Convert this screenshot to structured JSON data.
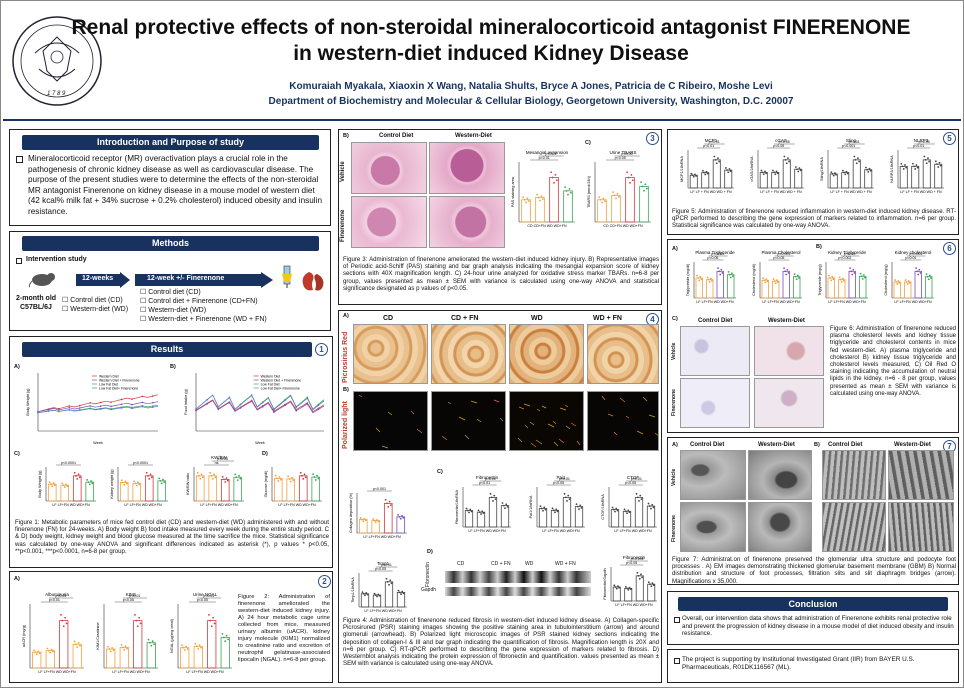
{
  "title_line1": "Renal protective effects of non-steroidal mineralocorticoid antagonist FINERENONE",
  "title_line2": "in western-diet induced Kidney Disease",
  "authors": "Komuraiah Myakala, Xiaoxin X Wang, Natalia Shults, Bryce A Jones, Patricia de C Ribeiro, Moshe Levi",
  "affiliation": "Department of Biochemistry and Molecular & Cellular Biology, Georgetown University, Washington, D.C. 20007",
  "seal_year": "1 7 8 9",
  "intro": {
    "header": "Introduction and Purpose of study",
    "text": "Mineralocorticoid receptor (MR) overactivation plays a crucial role in the pathogenesis of chronic kidney disease as well as cardiovascular disease. The purpose of the present studies were to determine the effects of the non-steroidal MR antagonist Finerenone on kidney disease in a mouse model of western diet (42 kcal% milk fat + 34% sucrose + 0.2% cholesterol) induced obesity and insulin resistance."
  },
  "methods": {
    "header": "Methods",
    "intervention": "Intervention study",
    "age": "2-month old",
    "strain": "C57BL/6J",
    "weeks12": "12-weeks",
    "weeks12fn": "12-week +/- Finerenone",
    "left_groups": [
      "Control diet (CD)",
      "Western-diet (WD)"
    ],
    "right_groups": [
      "Control diet (CD)",
      "Control diet + Finerenone (CD+FN)",
      "Western-diet (WD)",
      "Western-diet + Finerenone (WD + FN)"
    ]
  },
  "results": {
    "header": "Results",
    "num": "1",
    "panel_a": "A)",
    "panel_b": "B)",
    "panel_c": "C)",
    "panel_d": "D)",
    "legend": [
      "Western Diet",
      "Western Diet + Finerenone",
      "Low Fat Diet",
      "Low Fat Diet+ Finerenone"
    ],
    "ylabel_a": "Body Weight (g)",
    "ylabel_b": "Food Intake (g)",
    "xlabel": "Week",
    "c_labels": [
      "Body Weight (g)",
      "Kidney weight (g)",
      "KW/BW ratio",
      "Glucose (mg/dl)"
    ],
    "kwbw": "KW/BW",
    "sig": [
      "p<0.0001",
      "p<0.0001",
      "ns",
      "p<0.05"
    ],
    "xcat": "LF LF+FN WD WD+FN",
    "caption": "Figure 1: Metabolic parameters of mice fed control diet (CD) and western-diet (WD) administered with and without finerenone (FN) for 24-weeks. A) Body weight B) food intake measured every week during the entire study period. C & D) body weight, kidney weight and blood glucose measured at the time sacrifice the mice. Statistical significance was calculated by one-way ANOVA and significant differences indicated as asterisk (*), p values * p<0.05, **p<0.001, ***p<0.0001, n=6-8 per group."
  },
  "fig2": {
    "num": "2",
    "panel": "A)",
    "titles": [
      "Albuminuria",
      "KIM1",
      "Urine NGAL"
    ],
    "ylabels": [
      "uACR (mg/g)",
      "KIM1/Creatinine",
      "NGAL (µg/mg creat)"
    ],
    "sig": [
      "p<0.01",
      "p<0.01",
      "p<0.05",
      "p<0.01",
      "p<0.05",
      "p<0.01"
    ],
    "caption": "Figure 2: Administration of finerenone ameliorated the western-diet induced kidney injury. A) 24 hour metabolic cage urine collected from mice, measured urinary albumin (uACR), kidney injury molecule (KIM1) normalized to creatinine ratio and excretion of neutrophil gelatinase-associated lipocalin (NGAL). n=6-8 per group."
  },
  "fig3": {
    "num": "3",
    "panel_b": "B)",
    "panel_c": "C)",
    "cols": [
      "Control Diet",
      "Western-Diet"
    ],
    "rows": [
      "Vehicle",
      "Finerenone"
    ],
    "chart1": "Mesangial expansion",
    "chart2": "Urine TBARS",
    "ylabel1": "PAS staining area",
    "ylabel2": "TBARS (nmol/24h)",
    "sig": [
      "p<0.01",
      "p<0.01",
      "p<0.05",
      "p<0.05"
    ],
    "xcat": "CD CD+FN WD WD+FN",
    "caption": "Figure 3: Administration of finerenone ameliorated the western-diet induced kidney injury. B) Representative images of Periodic acid-Schiff (PAS) staining and bar graph analysis indicating the mesangial expansion score of kidney sections with 40X magnification length. C) 24-hour urine analyzed for oxidative stress marker TBARs. n=6-8 per group, values presented as mean ± SEM with variance is calculated using one-way ANOVA and statistical significance designated as p values of p<0.05."
  },
  "fig4": {
    "num": "4",
    "panel_a": "A)",
    "panel_b": "B)",
    "panel_c": "C)",
    "panel_d": "D)",
    "cols": [
      "CD",
      "CD + FN",
      "WD",
      "WD + FN"
    ],
    "row1": "Picrosirius Red",
    "row2": "Polarized light",
    "chart_titles": [
      "Fibronectin",
      "Pai1",
      "CTGF",
      "Timp1",
      "Fibronectin"
    ],
    "ylabels": [
      "Collagen deposition (%)",
      "Fibronectin/18sRNA",
      "Pai1/18sRNA",
      "CTGF/18sRNA",
      "Timp1/18sRNA",
      "Fibronectin/Gapdh"
    ],
    "sig": [
      "p<0.001",
      "p<0.01",
      "p<0.01",
      "p<0.05",
      "p<0.01",
      "p<0.05",
      "p<0.01",
      "p<0.05",
      "p<0.01",
      "p<0.05",
      "p<0.001"
    ],
    "blot_labels": [
      "Fibronectin",
      "Gapdh"
    ],
    "blot_cols": [
      "CD",
      "CD + FN",
      "WD",
      "WD + FN"
    ],
    "xcat": "LF LF+FN WD WD+FN",
    "caption": "Figure 4: Administration of finerenone reduced fibrosis in western-diet induced kidney disease. A) Collagen-specific Picrosirured (PSR) staining images showing the positive staining area in tubulointerstitium (arrow) and around glomeruli (arrowhead). B) Polarized light microscopic images of PSR stained kidney sections indicating the deposition of collagen-I & III and bar graph indicating the quantification of fibrosis. Magnification length is 20X and n=6 per group. C) RT-qPCR performed to describing the gene expression of markers related to fibrosis. D) Westernblot analysis indicating the protein expression of fibronectin and quantification. values presented as mean ± SEM with variance is calculated using one-way ANOVA."
  },
  "fig5": {
    "num": "5",
    "titles": [
      "MCP1",
      "cGAS",
      "Sting",
      "NLRP3"
    ],
    "ylabels": [
      "MCP1/18sRNA",
      "cGAS/18sRNA",
      "Sting/18sRNA",
      "NLRP3/18sRNA"
    ],
    "sig": [
      "p<0.01",
      "p<0.01",
      "p<0.05",
      "p<0.05",
      "p<0.001",
      "p<0.01",
      "p<0.01",
      "p<0.05"
    ],
    "xcat": "LF LF + FN WD WD + FN",
    "caption": "Figure 5: Administration of finerenone reduced inflammation in western-diet induced kidney disease. RT-qPCR performed to describing the gene expression of markers related to inflammation. n=6 per group. Statistical significance was calculated by one-way ANOVA."
  },
  "fig6": {
    "num": "6",
    "panel_a": "A)",
    "panel_b": "B)",
    "panel_c": "C)",
    "titles": [
      "Plasma Triglyceride",
      "Plasma Cholesterol",
      "Kidney Triglyceride",
      "Kidney cholesterol"
    ],
    "ylabels": [
      "Triglyceride (mg/dl)",
      "Cholesterol (mg/dl)",
      "Triglyceride (mg/g)",
      "Cholesterol (mg/g)"
    ],
    "sig": [
      "p<0.05",
      "p<0.001",
      "p<0.05",
      "p<0.001",
      "p<0.002",
      "p<0.05",
      "p<0.01",
      "p<0.001"
    ],
    "cols": [
      "Control Diet",
      "Western-Diet"
    ],
    "rows": [
      "Vehicle",
      "Finerenone"
    ],
    "xcat": "LF LF+FN WD WD+FN",
    "caption": "Figure 6: Administration of finerenone reduced plasma cholesterol levels and kidney tissue triglyceride and cholesterol contents in mice fed western-diet. A) plasma triglyceride and cholesterol B) kidney tissue triglyceride and cholesterol levels measured, C) Oil Red O staining indicating the accumulation of neutral lipids in the kidney. n=6 - 8 per group, values presented as mean ± SEM with variance is calculated using one-way ANOVA."
  },
  "fig7": {
    "num": "7",
    "panel_a": "A)",
    "panel_b": "B)",
    "cols": [
      "Control Diet",
      "Western-Diet",
      "Control Diet",
      "Western-Diet"
    ],
    "rows": [
      "Vehicle",
      "Finerenone"
    ],
    "caption": "Figure 7: Administrat.on of finerenone preserved the glomerular ultra structure and podocyte foot processes . A) EM images demonstrating thickened glomerular basement membrane (GBM) B) Normal distribution and structure of foot processes, filtration slits and slit diaphragm bridges (arrow). Magnifications x 35,000."
  },
  "conclusion": {
    "header": "Conclusion",
    "text": "Overall, our intervention data shows that administration of Finerenone exhibits renal protective role and prevent the progression of kidney disease in a mouse model of diet induced obesity and insulin resistance.",
    "funding": "The project is supporting by Institutional Investigated Grant (IIR) from BAYER U.S. Pharmaceuticals, R01DK116567 (ML)."
  },
  "colors": {
    "navy": "#17325e",
    "orange": "#f2a03c",
    "red": "#d23b3b",
    "green": "#3aa655",
    "purple": "#7b4ec0",
    "pas": "#d9a0c0",
    "psr": "#d89a54"
  }
}
